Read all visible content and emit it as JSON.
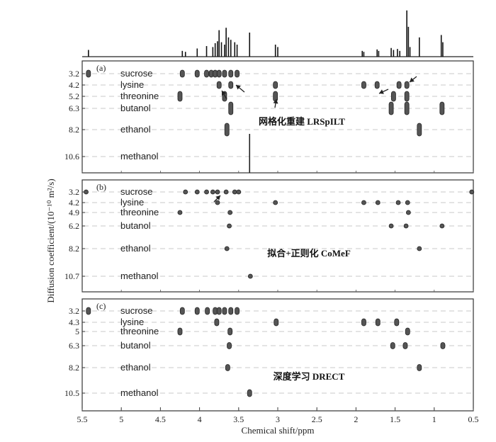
{
  "chart_data": {
    "type": "scatter",
    "xlabel": "Chemical shift/ppm",
    "ylabel": "Diffusion coefficient/(10⁻¹⁰ m²/s)",
    "xlim": [
      5.5,
      0.5
    ],
    "x_ticks": [
      "5.5",
      "5",
      "4.5",
      "4",
      "3.5",
      "3",
      "2.5",
      "2",
      "1.5",
      "1",
      "0.5"
    ],
    "spectrum_1d": [
      {
        "x": 5.42,
        "h": 0.14
      },
      {
        "x": 4.22,
        "h": 0.12
      },
      {
        "x": 4.18,
        "h": 0.1
      },
      {
        "x": 4.03,
        "h": 0.17
      },
      {
        "x": 3.91,
        "h": 0.22
      },
      {
        "x": 3.83,
        "h": 0.2
      },
      {
        "x": 3.8,
        "h": 0.28
      },
      {
        "x": 3.77,
        "h": 0.32
      },
      {
        "x": 3.75,
        "h": 0.55
      },
      {
        "x": 3.72,
        "h": 0.3
      },
      {
        "x": 3.68,
        "h": 0.25
      },
      {
        "x": 3.66,
        "h": 0.6
      },
      {
        "x": 3.63,
        "h": 0.4
      },
      {
        "x": 3.6,
        "h": 0.35
      },
      {
        "x": 3.55,
        "h": 0.3
      },
      {
        "x": 3.52,
        "h": 0.25
      },
      {
        "x": 3.36,
        "h": 0.5
      },
      {
        "x": 3.03,
        "h": 0.25
      },
      {
        "x": 3.0,
        "h": 0.2
      },
      {
        "x": 1.92,
        "h": 0.12
      },
      {
        "x": 1.9,
        "h": 0.1
      },
      {
        "x": 1.73,
        "h": 0.15
      },
      {
        "x": 1.71,
        "h": 0.12
      },
      {
        "x": 1.55,
        "h": 0.18
      },
      {
        "x": 1.52,
        "h": 0.14
      },
      {
        "x": 1.47,
        "h": 0.16
      },
      {
        "x": 1.44,
        "h": 0.12
      },
      {
        "x": 1.35,
        "h": 0.96
      },
      {
        "x": 1.33,
        "h": 0.62
      },
      {
        "x": 1.31,
        "h": 0.2
      },
      {
        "x": 1.19,
        "h": 0.4
      },
      {
        "x": 0.91,
        "h": 0.45
      },
      {
        "x": 0.89,
        "h": 0.3
      }
    ],
    "components": [
      "sucrose",
      "lysine",
      "threonine",
      "butanol",
      "ethanol",
      "methanol"
    ],
    "panels": [
      {
        "tag": "(a)",
        "method": "网格化重建 LRSpILT",
        "rows": [
          {
            "component": "sucrose",
            "D": "3.2",
            "x": [
              5.42,
              4.22,
              4.03,
              3.91,
              3.85,
              3.8,
              3.75,
              3.68,
              3.6,
              3.52
            ]
          },
          {
            "component": "lysine",
            "D": "4.2",
            "x": [
              3.75,
              3.6,
              3.03,
              1.9,
              1.73,
              1.45,
              1.35
            ]
          },
          {
            "component": "threonine",
            "D": "5.2",
            "x": [
              4.25,
              3.68,
              3.03,
              1.52,
              1.35
            ]
          },
          {
            "component": "butanol",
            "D": "6.3",
            "x": [
              3.6,
              1.55,
              1.35,
              0.9
            ]
          },
          {
            "component": "ethanol",
            "D": "8.2",
            "x": [
              3.65,
              1.19
            ]
          },
          {
            "component": "methanol",
            "D": "10.6",
            "x": [
              3.36
            ]
          }
        ]
      },
      {
        "tag": "(b)",
        "method": "拟合+正则化 CoMeF",
        "rows": [
          {
            "component": "sucrose",
            "D": "3.2",
            "x": [
              5.45,
              4.18,
              4.03,
              3.91,
              3.83,
              3.77,
              3.66,
              3.55,
              3.5,
              0.52
            ]
          },
          {
            "component": "lysine",
            "D": "4.2",
            "x": [
              3.77,
              3.03,
              1.9,
              1.72,
              1.46,
              1.34
            ]
          },
          {
            "component": "threonine",
            "D": "4.9",
            "x": [
              4.25,
              3.61,
              1.33
            ]
          },
          {
            "component": "butanol",
            "D": "6.2",
            "x": [
              3.62,
              1.55,
              1.36,
              0.9
            ]
          },
          {
            "component": "ethanol",
            "D": "8.2",
            "x": [
              3.65,
              1.19
            ]
          },
          {
            "component": "methanol",
            "D": "10.7",
            "x": [
              3.35
            ]
          }
        ]
      },
      {
        "tag": "(c)",
        "method": "深度学习 DRECT",
        "rows": [
          {
            "component": "sucrose",
            "D": "3.2",
            "x": [
              5.42,
              4.22,
              4.03,
              3.9,
              3.8,
              3.75,
              3.68,
              3.6,
              3.52
            ]
          },
          {
            "component": "lysine",
            "D": "4.3",
            "x": [
              3.78,
              3.02,
              1.9,
              1.72,
              1.48
            ]
          },
          {
            "component": "threonine",
            "D": "5",
            "x": [
              4.25,
              3.61,
              1.34
            ]
          },
          {
            "component": "butanol",
            "D": "6.3",
            "x": [
              3.62,
              1.53,
              1.37,
              0.89
            ]
          },
          {
            "component": "ethanol",
            "D": "8.2",
            "x": [
              3.64,
              1.19
            ]
          },
          {
            "component": "methanol",
            "D": "10.5",
            "x": [
              3.36
            ]
          }
        ]
      }
    ]
  }
}
